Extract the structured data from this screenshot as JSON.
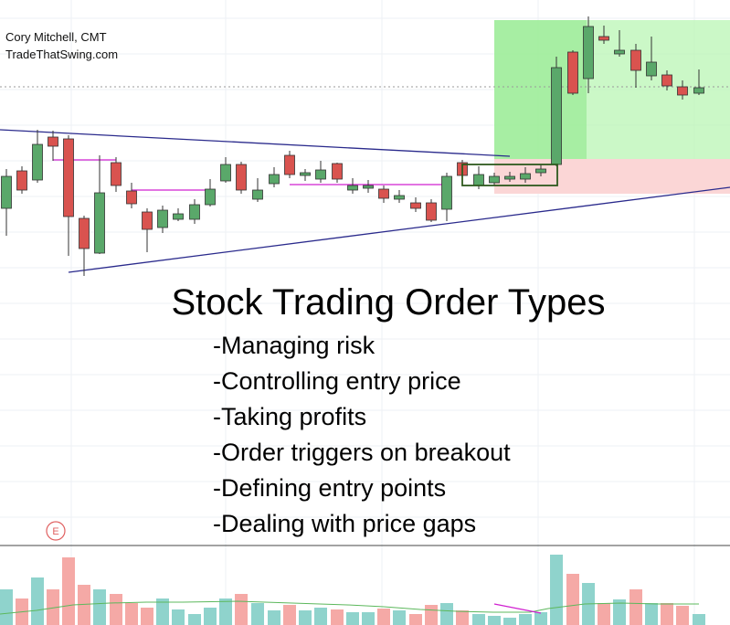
{
  "header": {
    "author": "Cory Mitchell, CMT",
    "site": "TradeThatSwing.com"
  },
  "title": "Stock Trading Order Types",
  "bullets": [
    "-Managing risk",
    "-Controlling entry price",
    "-Taking profits",
    "-Order triggers on breakout",
    "-Defining entry points",
    "-Dealing with price gaps"
  ],
  "marker": "E"
}
